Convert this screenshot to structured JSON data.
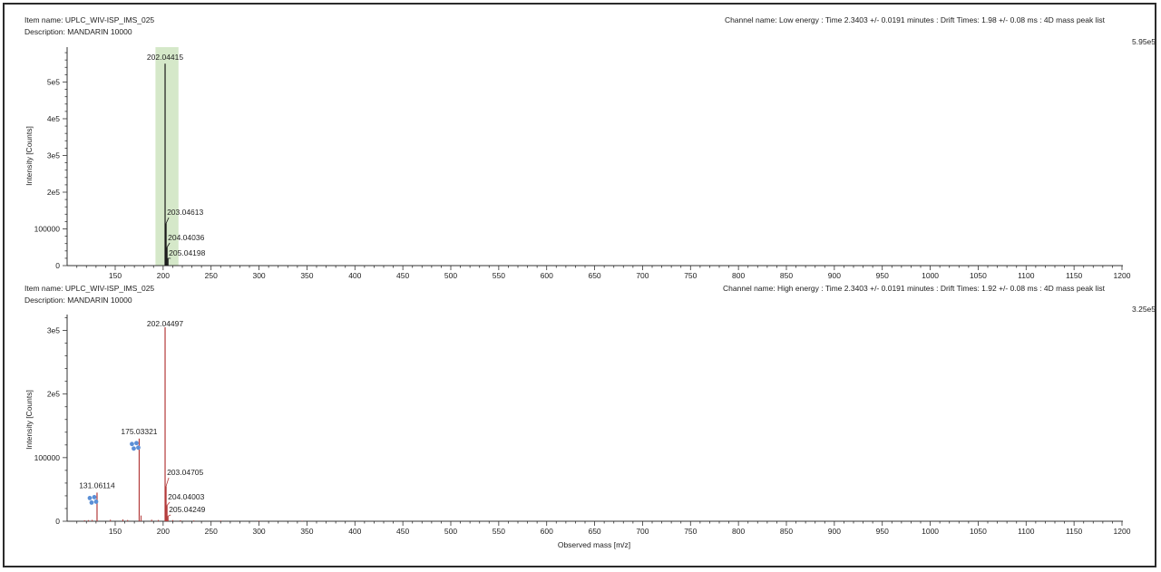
{
  "chart_data": [
    {
      "type": "bar",
      "item_name": "Item name: UPLC_WIV-ISP_IMS_025",
      "description": "Description: MANDARIN 10000",
      "channel": "Channel name: Low energy : Time 2.3403 +/- 0.0191 minutes : Drift Times: 1.98 +/- 0.08 ms : 4D mass peak list",
      "max_label": "5.95e5",
      "ylabel": "Intensity [Counts]",
      "xlabel": "",
      "xlim": [
        100,
        1200
      ],
      "ylim": [
        0,
        595000
      ],
      "xticks": [
        150,
        200,
        250,
        300,
        350,
        400,
        450,
        500,
        550,
        600,
        650,
        700,
        750,
        800,
        850,
        900,
        950,
        1000,
        1050,
        1100,
        1150,
        1200
      ],
      "yticks": [
        {
          "value": 0,
          "label": "0"
        },
        {
          "value": 100000,
          "label": "100000"
        },
        {
          "value": 200000,
          "label": "2e5"
        },
        {
          "value": 300000,
          "label": "3e5"
        },
        {
          "value": 400000,
          "label": "4e5"
        },
        {
          "value": 500000,
          "label": "5e5"
        }
      ],
      "highlight_range": [
        192,
        216
      ],
      "highlight_color": "#d5e8c9",
      "peak_color": "#1a1a1a",
      "peaks": [
        {
          "x": 202.04415,
          "y": 550000,
          "label": "202.04415"
        },
        {
          "x": 203.04613,
          "y": 115000,
          "label": "203.04613"
        },
        {
          "x": 204.04036,
          "y": 50000,
          "label": "204.04036"
        },
        {
          "x": 205.04198,
          "y": 20000,
          "label": "205.04198"
        }
      ]
    },
    {
      "type": "bar",
      "item_name": "Item name: UPLC_WIV-ISP_IMS_025",
      "description": "Description: MANDARIN 10000",
      "channel": "Channel name: High energy : Time 2.3403 +/- 0.0191 minutes : Drift Times: 1.92 +/- 0.08 ms : 4D mass peak list",
      "max_label": "3.25e5",
      "ylabel": "Intensity [Counts]",
      "xlabel": "Observed mass [m/z]",
      "xlim": [
        100,
        1200
      ],
      "ylim": [
        0,
        325000
      ],
      "xticks": [
        150,
        200,
        250,
        300,
        350,
        400,
        450,
        500,
        550,
        600,
        650,
        700,
        750,
        800,
        850,
        900,
        950,
        1000,
        1050,
        1100,
        1150,
        1200
      ],
      "yticks": [
        {
          "value": 0,
          "label": "0"
        },
        {
          "value": 100000,
          "label": "100000"
        },
        {
          "value": 200000,
          "label": "2e5"
        },
        {
          "value": 300000,
          "label": "3e5"
        }
      ],
      "peak_color": "#b33a3a",
      "marker_color": "#5b8fd6",
      "peaks": [
        {
          "x": 131.06114,
          "y": 45000,
          "label": "131.06114",
          "marker": true
        },
        {
          "x": 175.03321,
          "y": 130000,
          "label": "175.03321",
          "marker": true
        },
        {
          "x": 202.04497,
          "y": 305000,
          "label": "202.04497"
        },
        {
          "x": 203.04705,
          "y": 55000,
          "label": "203.04705"
        },
        {
          "x": 204.04003,
          "y": 25000,
          "label": "204.04003"
        },
        {
          "x": 205.04249,
          "y": 8000,
          "label": "205.04249"
        }
      ],
      "minor_peaks": [
        {
          "x": 118,
          "y": 1500
        },
        {
          "x": 122,
          "y": 1800
        },
        {
          "x": 126,
          "y": 2200
        },
        {
          "x": 145,
          "y": 2500
        },
        {
          "x": 158,
          "y": 3000
        },
        {
          "x": 163,
          "y": 2000
        },
        {
          "x": 177,
          "y": 9000
        },
        {
          "x": 188,
          "y": 2500
        },
        {
          "x": 195,
          "y": 2000
        },
        {
          "x": 210,
          "y": 1800
        },
        {
          "x": 218,
          "y": 1500
        },
        {
          "x": 232,
          "y": 1200
        },
        {
          "x": 260,
          "y": 1000
        },
        {
          "x": 300,
          "y": 900
        },
        {
          "x": 345,
          "y": 800
        }
      ]
    }
  ]
}
